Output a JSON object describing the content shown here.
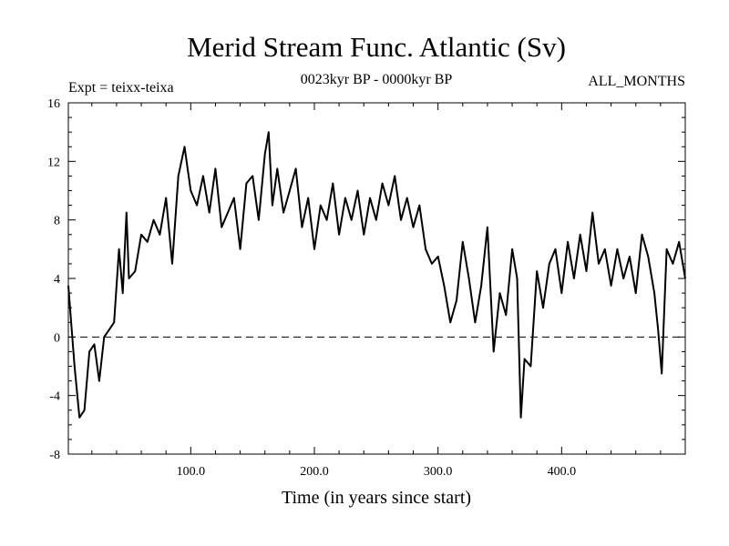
{
  "chart_data": {
    "type": "line",
    "title": "Merid Stream Func. Atlantic (Sv)",
    "subtitle_left": "Expt = teixx-teixa",
    "subtitle_center": "0023kyr BP - 0000kyr BP",
    "subtitle_right": "ALL_MONTHS",
    "xlabel": "Time (in years since start)",
    "ylabel": "",
    "xlim": [
      1,
      500
    ],
    "ylim": [
      -8,
      16
    ],
    "xticks": [
      100,
      200,
      300,
      400
    ],
    "xtick_labels": [
      "100.0",
      "200.0",
      "300.0",
      "400.0"
    ],
    "yticks": [
      -8,
      -4,
      0,
      4,
      8,
      12,
      16
    ],
    "ytick_labels": [
      "-8",
      "-4",
      "0",
      "4",
      "8",
      "12",
      "16"
    ],
    "reference_line": {
      "y": 0,
      "style": "dashed"
    },
    "series": [
      {
        "name": "Merid Stream Func. Atlantic",
        "color": "#000000",
        "x": [
          1,
          6,
          10,
          14,
          18,
          22,
          26,
          30,
          34,
          38,
          42,
          45,
          48,
          50,
          55,
          60,
          65,
          70,
          75,
          80,
          85,
          90,
          95,
          100,
          105,
          110,
          115,
          120,
          125,
          130,
          135,
          140,
          145,
          150,
          155,
          160,
          163,
          166,
          170,
          175,
          180,
          185,
          190,
          195,
          200,
          205,
          210,
          215,
          220,
          225,
          230,
          235,
          240,
          245,
          250,
          255,
          260,
          265,
          270,
          275,
          280,
          285,
          290,
          295,
          300,
          305,
          310,
          315,
          320,
          325,
          330,
          335,
          340,
          345,
          350,
          355,
          360,
          364,
          367,
          370,
          375,
          380,
          385,
          390,
          395,
          400,
          405,
          410,
          415,
          420,
          425,
          430,
          435,
          440,
          445,
          450,
          455,
          460,
          465,
          470,
          475,
          478,
          481,
          485,
          490,
          495,
          500
        ],
        "values": [
          3.5,
          -2.0,
          -5.5,
          -5.0,
          -1.0,
          -0.5,
          -3.0,
          0.0,
          0.5,
          1.0,
          6.0,
          3.0,
          8.5,
          4.0,
          4.5,
          7.0,
          6.5,
          8.0,
          7.0,
          9.5,
          5.0,
          11.0,
          13.0,
          10.0,
          9.0,
          11.0,
          8.5,
          11.5,
          7.5,
          8.5,
          9.5,
          6.0,
          10.5,
          11.0,
          8.0,
          12.5,
          14.0,
          9.0,
          11.5,
          8.5,
          10.0,
          11.5,
          7.5,
          9.5,
          6.0,
          9.0,
          8.0,
          10.5,
          7.0,
          9.5,
          8.0,
          10.0,
          7.0,
          9.5,
          8.0,
          10.5,
          9.0,
          11.0,
          8.0,
          9.5,
          7.5,
          9.0,
          6.0,
          5.0,
          5.5,
          3.5,
          1.0,
          2.5,
          6.5,
          4.0,
          1.0,
          3.5,
          7.5,
          -1.0,
          3.0,
          1.5,
          6.0,
          4.0,
          -5.5,
          -1.5,
          -2.0,
          4.5,
          2.0,
          5.0,
          6.0,
          3.0,
          6.5,
          4.0,
          7.0,
          4.5,
          8.5,
          5.0,
          6.0,
          3.5,
          6.0,
          4.0,
          5.5,
          3.0,
          7.0,
          5.5,
          3.0,
          0.5,
          -2.5,
          6.0,
          5.0,
          6.5,
          4.0
        ]
      }
    ]
  }
}
